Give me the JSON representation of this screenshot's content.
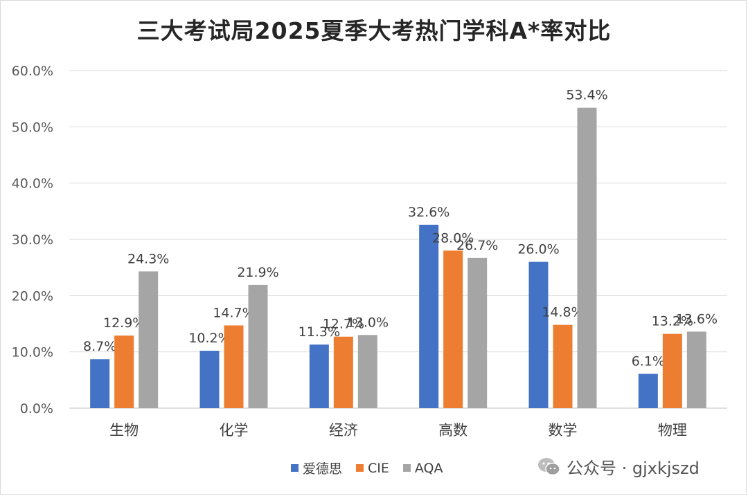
{
  "chart_data": {
    "type": "bar",
    "title": "三大考试局2025夏季大考热门学科A*率对比",
    "categories": [
      "生物",
      "化学",
      "经济",
      "高数",
      "数学",
      "物理"
    ],
    "series": [
      {
        "name": "爱德思",
        "color": "#4472c4",
        "values": [
          8.7,
          10.2,
          11.3,
          32.6,
          26.0,
          6.1
        ]
      },
      {
        "name": "CIE",
        "color": "#ed7d31",
        "values": [
          12.9,
          14.7,
          12.7,
          28.0,
          14.8,
          13.2
        ]
      },
      {
        "name": "AQA",
        "color": "#a5a5a5",
        "values": [
          24.3,
          21.9,
          13.0,
          26.7,
          53.4,
          13.6
        ]
      }
    ],
    "data_labels": [
      [
        "8.7%",
        "10.2%",
        "11.3%",
        "32.6%",
        "26.0%",
        "6.1%"
      ],
      [
        "12.9%",
        "14.7%",
        "12.7%",
        "28.0%",
        "14.8%",
        "13.2%"
      ],
      [
        "24.3%",
        "21.9%",
        "13.0%",
        "26.7%",
        "53.4%",
        "13.6%"
      ]
    ],
    "y_ticks": [
      "0.0%",
      "10.0%",
      "20.0%",
      "30.0%",
      "40.0%",
      "50.0%",
      "60.0%"
    ],
    "ylim": [
      0,
      60
    ],
    "grid": true,
    "legend_position": "bottom"
  },
  "watermark": {
    "icon": "wechat-icon",
    "text": "公众号 · gjxkjszd"
  }
}
